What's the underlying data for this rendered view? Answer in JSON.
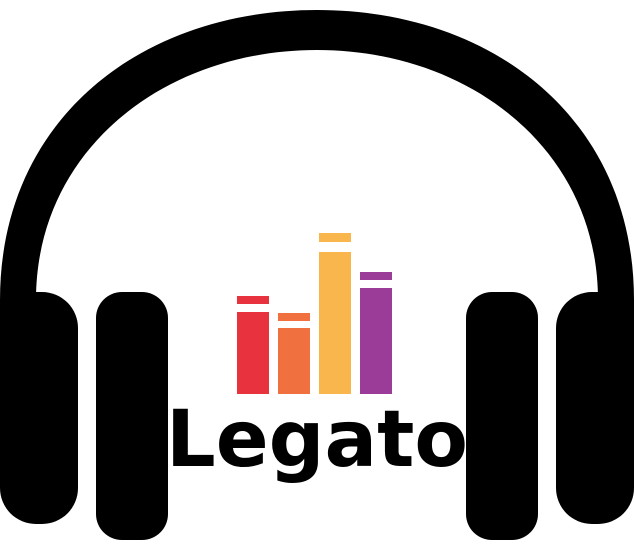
{
  "brand": {
    "name": "Legato",
    "text_color": "#000000"
  },
  "headphones": {
    "icon": "headphones-icon",
    "color": "#000000"
  },
  "book_bars": {
    "icon": "books-equalizer-icon",
    "colors": [
      "#e8323e",
      "#f07040",
      "#f8b64c",
      "#9b3d98"
    ]
  }
}
